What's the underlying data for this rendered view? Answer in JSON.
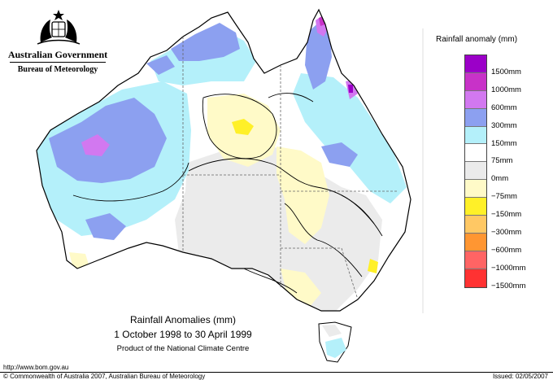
{
  "header": {
    "government": "Australian Government",
    "bureau": "Bureau of Meteorology"
  },
  "legend": {
    "title": "Rainfall anomaly (mm)",
    "items": [
      {
        "label": "1500mm",
        "color": "#9b00c8"
      },
      {
        "label": "1000mm",
        "color": "#c832c8"
      },
      {
        "label": "600mm",
        "color": "#d278f0"
      },
      {
        "label": "300mm",
        "color": "#8ca0f0"
      },
      {
        "label": "150mm",
        "color": "#b4f0fa"
      },
      {
        "label": "75mm",
        "color": "#ffffff"
      },
      {
        "label": "0mm",
        "color": "#ebebeb"
      },
      {
        "label": "−75mm",
        "color": "#fffac8"
      },
      {
        "label": "−150mm",
        "color": "#fff028"
      },
      {
        "label": "−300mm",
        "color": "#ffc864"
      },
      {
        "label": "−600mm",
        "color": "#ff9632"
      },
      {
        "label": "−1000mm",
        "color": "#ff6464"
      },
      {
        "label": "−1500mm",
        "color": "#ff3232"
      }
    ]
  },
  "caption": {
    "title": "Rainfall Anomalies (mm)",
    "period": "1 October 1998 to 30 April 1999",
    "product": "Product of the National Climate Centre"
  },
  "footer": {
    "url": "http://www.bom.gov.au",
    "copyright": "© Commonwealth of Australia 2007, Australian Bureau of Meteorology",
    "issued": "Issued: 02/05/2007"
  }
}
